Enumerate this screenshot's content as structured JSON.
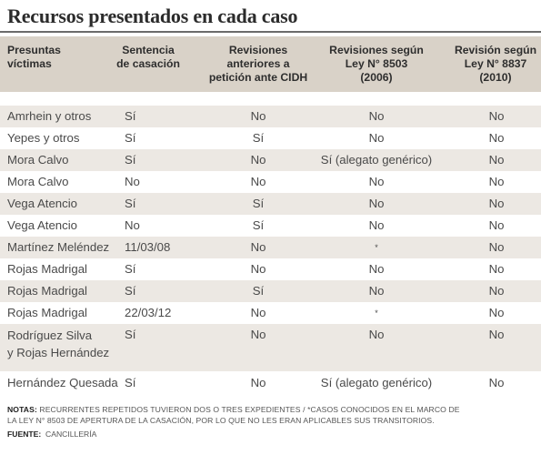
{
  "title": "Recursos presentados en cada caso",
  "columns": [
    "Presuntas víctimas",
    "Sentencia de casación",
    "Revisiones anteriores a petición ante CIDH",
    "Revisiones según Ley N° 8503 (2006)",
    "Revisión según Ley N° 8837 (2010)"
  ],
  "header": {
    "col1_l1": "Presuntas",
    "col1_l2": "víctimas",
    "col2_l1": "Sentencia",
    "col2_l2": "de casación",
    "col3_l1": "Revisiones",
    "col3_l2": "anteriores a",
    "col3_l3": "petición ante CIDH",
    "col4_l1": "Revisiones según",
    "col4_l2": "Ley N° 8503",
    "col4_l3": "(2006)",
    "col5_l1": "Revisión según",
    "col5_l2": "Ley N° 8837",
    "col5_l3": "(2010)"
  },
  "rows": [
    [
      "Amrhein y otros",
      "Sí",
      "No",
      "No",
      "No"
    ],
    [
      "Yepes y otros",
      "Sí",
      "Sí",
      "No",
      "No"
    ],
    [
      "Mora Calvo",
      "Sí",
      "No",
      "Sí (alegato genérico)",
      "No"
    ],
    [
      "Mora Calvo",
      "No",
      "No",
      "No",
      "No"
    ],
    [
      "Vega Atencio",
      "Sí",
      "Sí",
      "No",
      "No"
    ],
    [
      "Vega Atencio",
      "No",
      "Sí",
      "No",
      "No"
    ],
    [
      "Martínez Meléndez",
      "11/03/08",
      "No",
      "*",
      "No"
    ],
    [
      "Rojas Madrigal",
      "Sí",
      "No",
      "No",
      "No"
    ],
    [
      "Rojas Madrigal",
      "Sí",
      "Sí",
      "No",
      "No"
    ],
    [
      "Rojas Madrigal",
      "22/03/12",
      "No",
      "*",
      "No"
    ],
    [
      "Rodríguez Silva y Rojas Hernández",
      "Sí",
      "No",
      "No",
      "No"
    ],
    [
      "Hernández Quesada",
      "Sí",
      "No",
      "Sí (alegato genérico)",
      "No"
    ]
  ],
  "row_name_lines": {
    "r10_l1": "Rodríguez Silva",
    "r10_l2": "y Rojas Hernández"
  },
  "notes": {
    "label": "NOTAS:",
    "text_l1": "RECURRENTES REPETIDOS TUVIERON DOS O TRES EXPEDIENTES / *CASOS CONOCIDOS EN EL MARCO DE",
    "text_l2": "LA LEY N° 8503 DE APERTURA DE LA CASACIÓN, POR LO QUE NO LES ERAN APLICABLES SUS TRANSITORIOS."
  },
  "source": {
    "label": "FUENTE:",
    "text": "CANCILLERÍA"
  },
  "colors": {
    "header_bg": "#d9d2c8",
    "stripe": "#ece8e3",
    "rule": "#6b6b6b"
  }
}
